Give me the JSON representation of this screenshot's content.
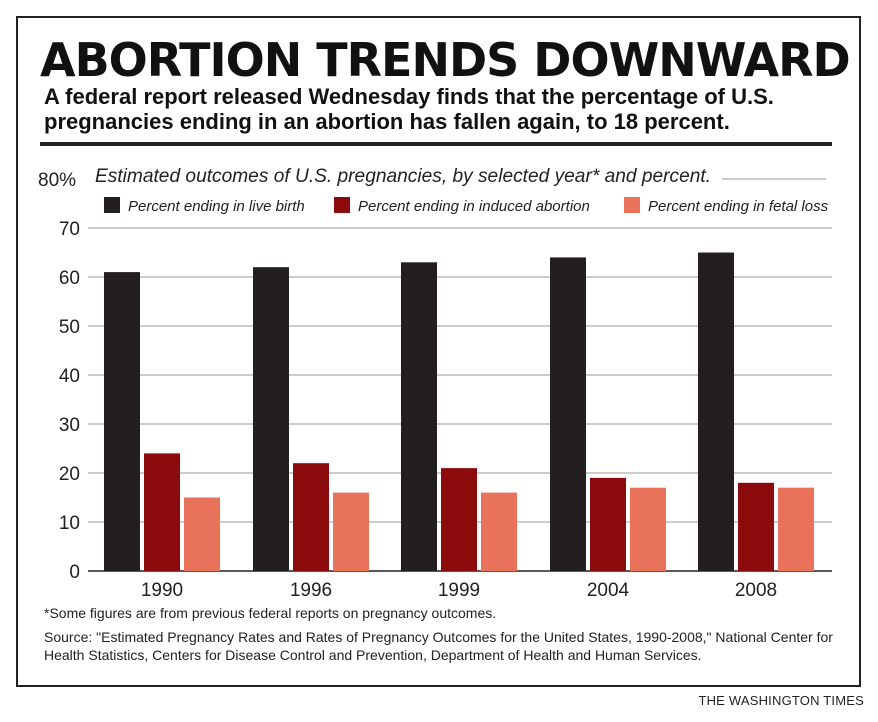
{
  "headline": "ABORTION TRENDS DOWNWARD",
  "subhead": "A federal report released Wednesday finds that the percentage of U.S. pregnancies ending in an abortion has fallen again, to 18 percent.",
  "footnote": "*Some figures are from previous federal reports on pregnancy outcomes.",
  "source": "Source: \"Estimated Pregnancy Rates and Rates of Pregnancy Outcomes for the United States, 1990-2008,\" National Center for Health Statistics, Centers for Disease Control and Prevention, Department of Health and Human Services.",
  "credit": "THE WASHINGTON TIMES",
  "chart_data": {
    "type": "bar",
    "title": "Estimated outcomes of U.S. pregnancies, by selected year* and percent.",
    "categories": [
      "1990",
      "1996",
      "1999",
      "2004",
      "2008"
    ],
    "series": [
      {
        "name": "Percent ending in live birth",
        "color": "#231f20",
        "values": [
          61,
          62,
          63,
          64,
          65
        ]
      },
      {
        "name": "Percent ending in induced abortion",
        "color": "#8b0a0c",
        "values": [
          24,
          22,
          21,
          19,
          18
        ]
      },
      {
        "name": "Percent ending in fetal loss",
        "color": "#e8735a",
        "values": [
          15,
          16,
          16,
          17,
          17
        ]
      }
    ],
    "ylim": [
      0,
      80
    ],
    "yticks": [
      0,
      10,
      20,
      30,
      40,
      50,
      60,
      70,
      80
    ],
    "ytick_labels": [
      "0",
      "10",
      "20",
      "30",
      "40",
      "50",
      "60",
      "70",
      "80%"
    ],
    "grid": true,
    "legend_position": "top"
  }
}
